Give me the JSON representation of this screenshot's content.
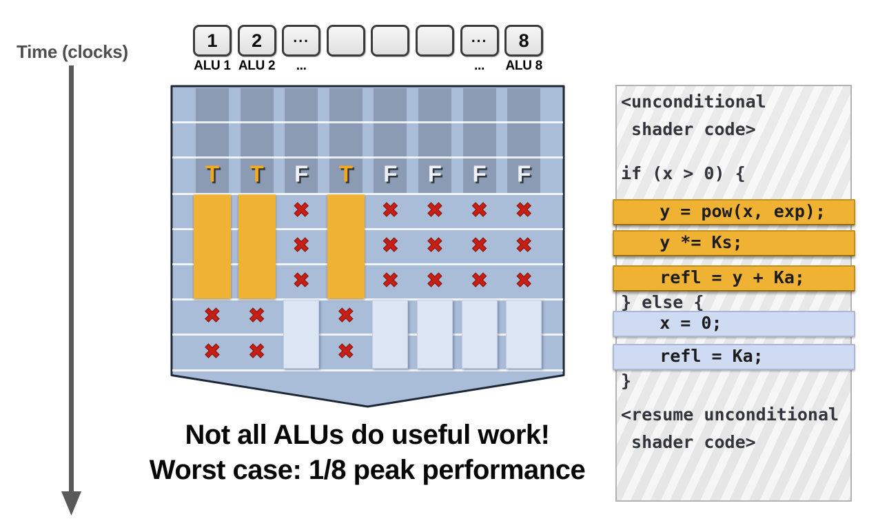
{
  "slide": {
    "time_axis_label": "Time (clocks)",
    "caption_line1": "Not all ALUs do useful work!",
    "caption_line2": "Worst case: 1/8 peak performance"
  },
  "alu_row": {
    "box_labels": [
      "1",
      "2",
      "...",
      "",
      "",
      "",
      "...",
      "8"
    ],
    "name_labels": [
      {
        "text": "ALU 1",
        "col": 0
      },
      {
        "text": "ALU 2",
        "col": 1
      },
      {
        "text": "...",
        "col": 2
      },
      {
        "text": "...",
        "col": 6
      },
      {
        "text": "ALU 8",
        "col": 7
      }
    ]
  },
  "diagram": {
    "mask_values": [
      "T",
      "T",
      "F",
      "T",
      "F",
      "F",
      "F",
      "F"
    ],
    "pre_branch_clock_rows": 2,
    "if_branch_clock_rows": 3,
    "else_branch_clock_rows": 2,
    "x_mark_glyph": "✖",
    "colors": {
      "body_fill": "#a9bcd8",
      "lane_fill": "#8c9bb4",
      "border": "#1d2735",
      "active_bar": "#f0b232",
      "idle_bar": "#dbe5f4",
      "x_mark": "#c51f16",
      "mask_true": "#f2a91e",
      "mask_false": "#edf2fb"
    }
  },
  "code_panel": {
    "lines": [
      {
        "text": "<unconditional",
        "highlight": "none"
      },
      {
        "text": " shader code>",
        "highlight": "none"
      },
      {
        "text": "",
        "highlight": "none"
      },
      {
        "text": "if (x > 0) {",
        "highlight": "none"
      },
      {
        "text": "    y = pow(x, exp);",
        "highlight": "if"
      },
      {
        "text": "    y *= Ks;",
        "highlight": "if"
      },
      {
        "text": "    refl = y + Ka;",
        "highlight": "if"
      },
      {
        "text": "} else {",
        "highlight": "none"
      },
      {
        "text": "    x = 0;",
        "highlight": "else"
      },
      {
        "text": "    refl = Ka;",
        "highlight": "else"
      },
      {
        "text": "}",
        "highlight": "none"
      },
      {
        "text": "<resume unconditional",
        "highlight": "none"
      },
      {
        "text": " shader code>",
        "highlight": "none"
      }
    ],
    "if_highlight_color": "#f0b232",
    "else_highlight_color": "#cfdbf2"
  }
}
